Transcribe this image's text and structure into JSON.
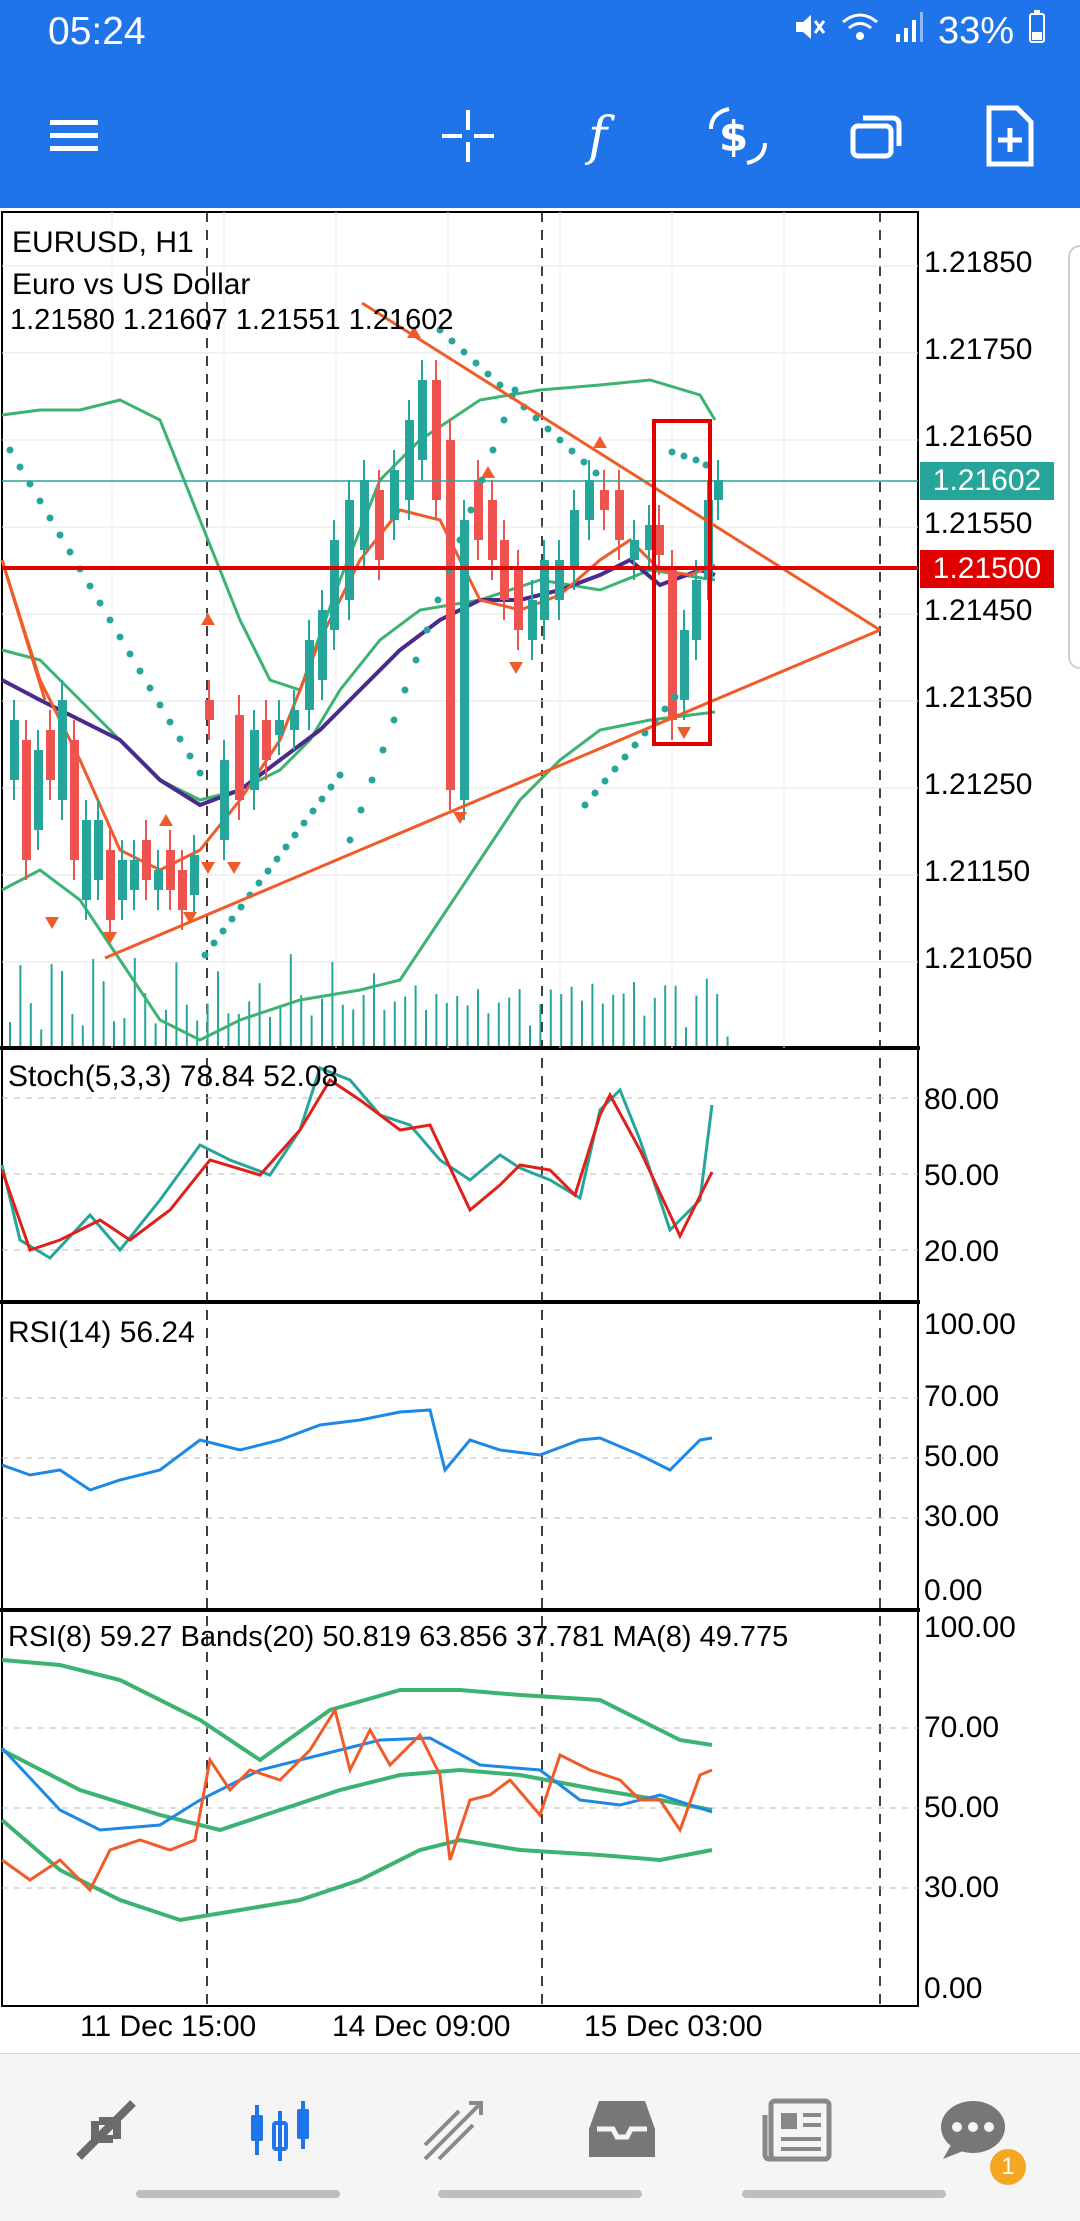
{
  "status_bar": {
    "time": "05:24",
    "battery": "33%"
  },
  "toolbar": {
    "menu_icon": "hamburger-icon",
    "crosshair_icon": "crosshair-icon",
    "indicators_icon": "function-icon",
    "trade_icon": "dollar-trade-icon",
    "windows_icon": "windows-icon",
    "new_order_icon": "add-document-icon"
  },
  "chart": {
    "symbol": "EURUSD, H1",
    "description": "Euro vs US Dollar",
    "ohlc": "1.21580 1.21607 1.21551 1.21602",
    "price_ticks": [
      "1.21850",
      "1.21750",
      "1.21650",
      "1.21550",
      "1.21450",
      "1.21350",
      "1.21250",
      "1.21150",
      "1.21050"
    ],
    "current_price": "1.21602",
    "level_price": "1.21500",
    "colors": {
      "bull": "#26a69a",
      "bear": "#ef5350",
      "level": "#e00000",
      "bands": "#3cb371",
      "ma": "#4b2a8c",
      "current": "#26a69a"
    }
  },
  "stoch": {
    "label": "Stoch(5,3,3) 78.84 52.08",
    "ticks": [
      "80.00",
      "50.00",
      "20.00"
    ]
  },
  "rsi14": {
    "label": "RSI(14) 56.24",
    "ticks": [
      "100.00",
      "70.00",
      "50.00",
      "30.00",
      "0.00"
    ]
  },
  "rsi8": {
    "label": "RSI(8) 59.27 Bands(20) 50.819 63.856 37.781 MA(8) 49.775",
    "ticks": [
      "100.00",
      "70.00",
      "50.00",
      "30.00",
      "0.00"
    ]
  },
  "x_axis": {
    "labels": [
      "11 Dec 15:00",
      "14 Dec 09:00",
      "15 Dec 03:00"
    ]
  },
  "bottom_nav": [
    {
      "name": "quotes",
      "icon": "quotes-arrows-icon"
    },
    {
      "name": "chart",
      "icon": "candles-icon"
    },
    {
      "name": "trade",
      "icon": "trade-trend-icon"
    },
    {
      "name": "history",
      "icon": "inbox-icon"
    },
    {
      "name": "news",
      "icon": "news-icon"
    },
    {
      "name": "messages",
      "icon": "chat-icon",
      "badge": "1"
    }
  ]
}
